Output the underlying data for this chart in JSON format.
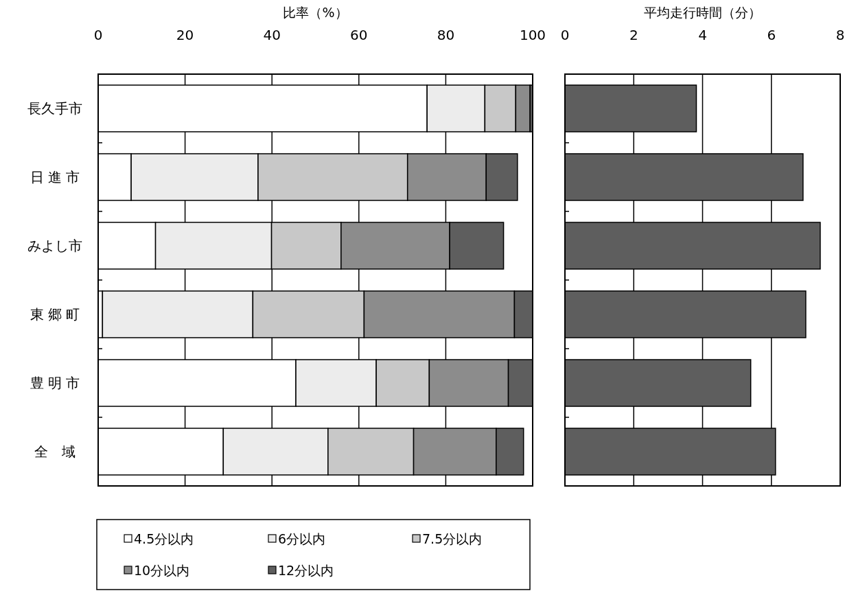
{
  "chart_data": [
    {
      "type": "bar",
      "orientation": "horizontal",
      "stacked": true,
      "xlabel": "比率（%）",
      "categories": [
        "長久手市",
        "日 進 市",
        "みよし市",
        "東 郷 町",
        "豊 明 市",
        "全　域"
      ],
      "series": [
        {
          "name": "4.5分以内",
          "color": "#ffffff",
          "values": [
            75.7,
            7.6,
            13.2,
            1.0,
            45.5,
            28.8
          ]
        },
        {
          "name": "6分以内",
          "color": "#ececec",
          "values": [
            13.3,
            29.2,
            26.7,
            34.6,
            18.5,
            24.1
          ]
        },
        {
          "name": "7.5分以内",
          "color": "#c8c8c8",
          "values": [
            7.1,
            34.4,
            16.0,
            25.6,
            12.2,
            19.7
          ]
        },
        {
          "name": "10分以内",
          "color": "#8c8c8c",
          "values": [
            3.3,
            18.1,
            25.0,
            34.6,
            18.2,
            19.0
          ]
        },
        {
          "name": "12分以内",
          "color": "#5e5e5e",
          "values": [
            0.6,
            7.2,
            12.4,
            4.2,
            5.6,
            6.3
          ]
        }
      ],
      "xlim": [
        0,
        100
      ],
      "xticks": [
        0,
        20,
        40,
        60,
        80,
        100
      ],
      "grid": "x",
      "legend": "bottom"
    },
    {
      "type": "bar",
      "orientation": "horizontal",
      "xlabel": "平均走行時間（分）",
      "categories": [
        null,
        null,
        null,
        null,
        null,
        null
      ],
      "values": [
        3.82,
        6.92,
        7.42,
        7.0,
        5.4,
        6.12
      ],
      "color": "#5e5e5e",
      "xlim": [
        0,
        8
      ],
      "xticks": [
        0,
        2,
        4,
        6,
        8
      ],
      "grid": "x",
      "tick_labels": "x"
    }
  ]
}
